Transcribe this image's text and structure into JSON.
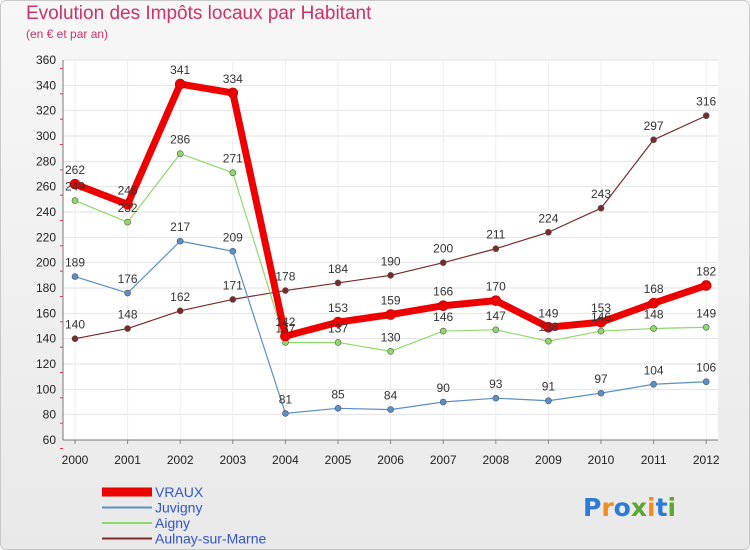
{
  "title": "Evolution des Impôts locaux par Habitant",
  "subtitle": "(en € et par an)",
  "logo": {
    "text": "Proxiti",
    "letters": [
      "P",
      "r",
      "o",
      "x",
      "i",
      "t",
      "i"
    ],
    "colors": [
      "#2e7bd6",
      "#f08c1e",
      "#2e7bd6",
      "#5aa832",
      "#f08c1e",
      "#2e7bd6",
      "#5aa832"
    ]
  },
  "chart_data": {
    "type": "line",
    "title": "Evolution des Impôts locaux par Habitant",
    "ylabel": "(en € et par an)",
    "xlabel": "",
    "x": [
      "2000",
      "2001",
      "2002",
      "2003",
      "2004",
      "2005",
      "2006",
      "2007",
      "2008",
      "2009",
      "2010",
      "2011",
      "2012"
    ],
    "ylim": [
      60,
      360
    ],
    "yticks": [
      60,
      80,
      100,
      120,
      140,
      160,
      180,
      200,
      220,
      240,
      260,
      280,
      300,
      320,
      340,
      360
    ],
    "ytick_labels": [
      "60",
      "80",
      "100",
      "120",
      "140",
      "160",
      "180",
      "200",
      "220",
      "240",
      "260",
      "280",
      "300",
      "320",
      "340",
      "360"
    ],
    "grid": true,
    "legend_position": "bottom-left",
    "series": [
      {
        "name": "VRAUX",
        "color": "#ee0000",
        "labelColor": "#3355cc",
        "width": 7,
        "values": [
          262,
          246,
          341,
          334,
          142,
          153,
          159,
          166,
          170,
          149,
          153,
          168,
          182
        ]
      },
      {
        "name": "Juvigny",
        "color": "#5b8fc7",
        "labelColor": "#3355cc",
        "width": 1.2,
        "values": [
          189,
          176,
          217,
          209,
          81,
          85,
          84,
          90,
          93,
          91,
          97,
          104,
          106
        ]
      },
      {
        "name": "Aigny",
        "color": "#8fd96a",
        "labelColor": "#3355cc",
        "width": 1.2,
        "values": [
          249,
          232,
          286,
          271,
          137,
          137,
          130,
          146,
          147,
          138,
          146,
          148,
          149
        ]
      },
      {
        "name": "Aulnay-sur-Marne",
        "color": "#7a2a2a",
        "labelColor": "#3355cc",
        "width": 1.2,
        "values": [
          140,
          148,
          162,
          171,
          178,
          184,
          190,
          200,
          211,
          224,
          243,
          297,
          316
        ]
      }
    ],
    "draw_order": [
      3,
      2,
      1,
      0
    ],
    "label_order": [
      3,
      2,
      1,
      0
    ]
  }
}
